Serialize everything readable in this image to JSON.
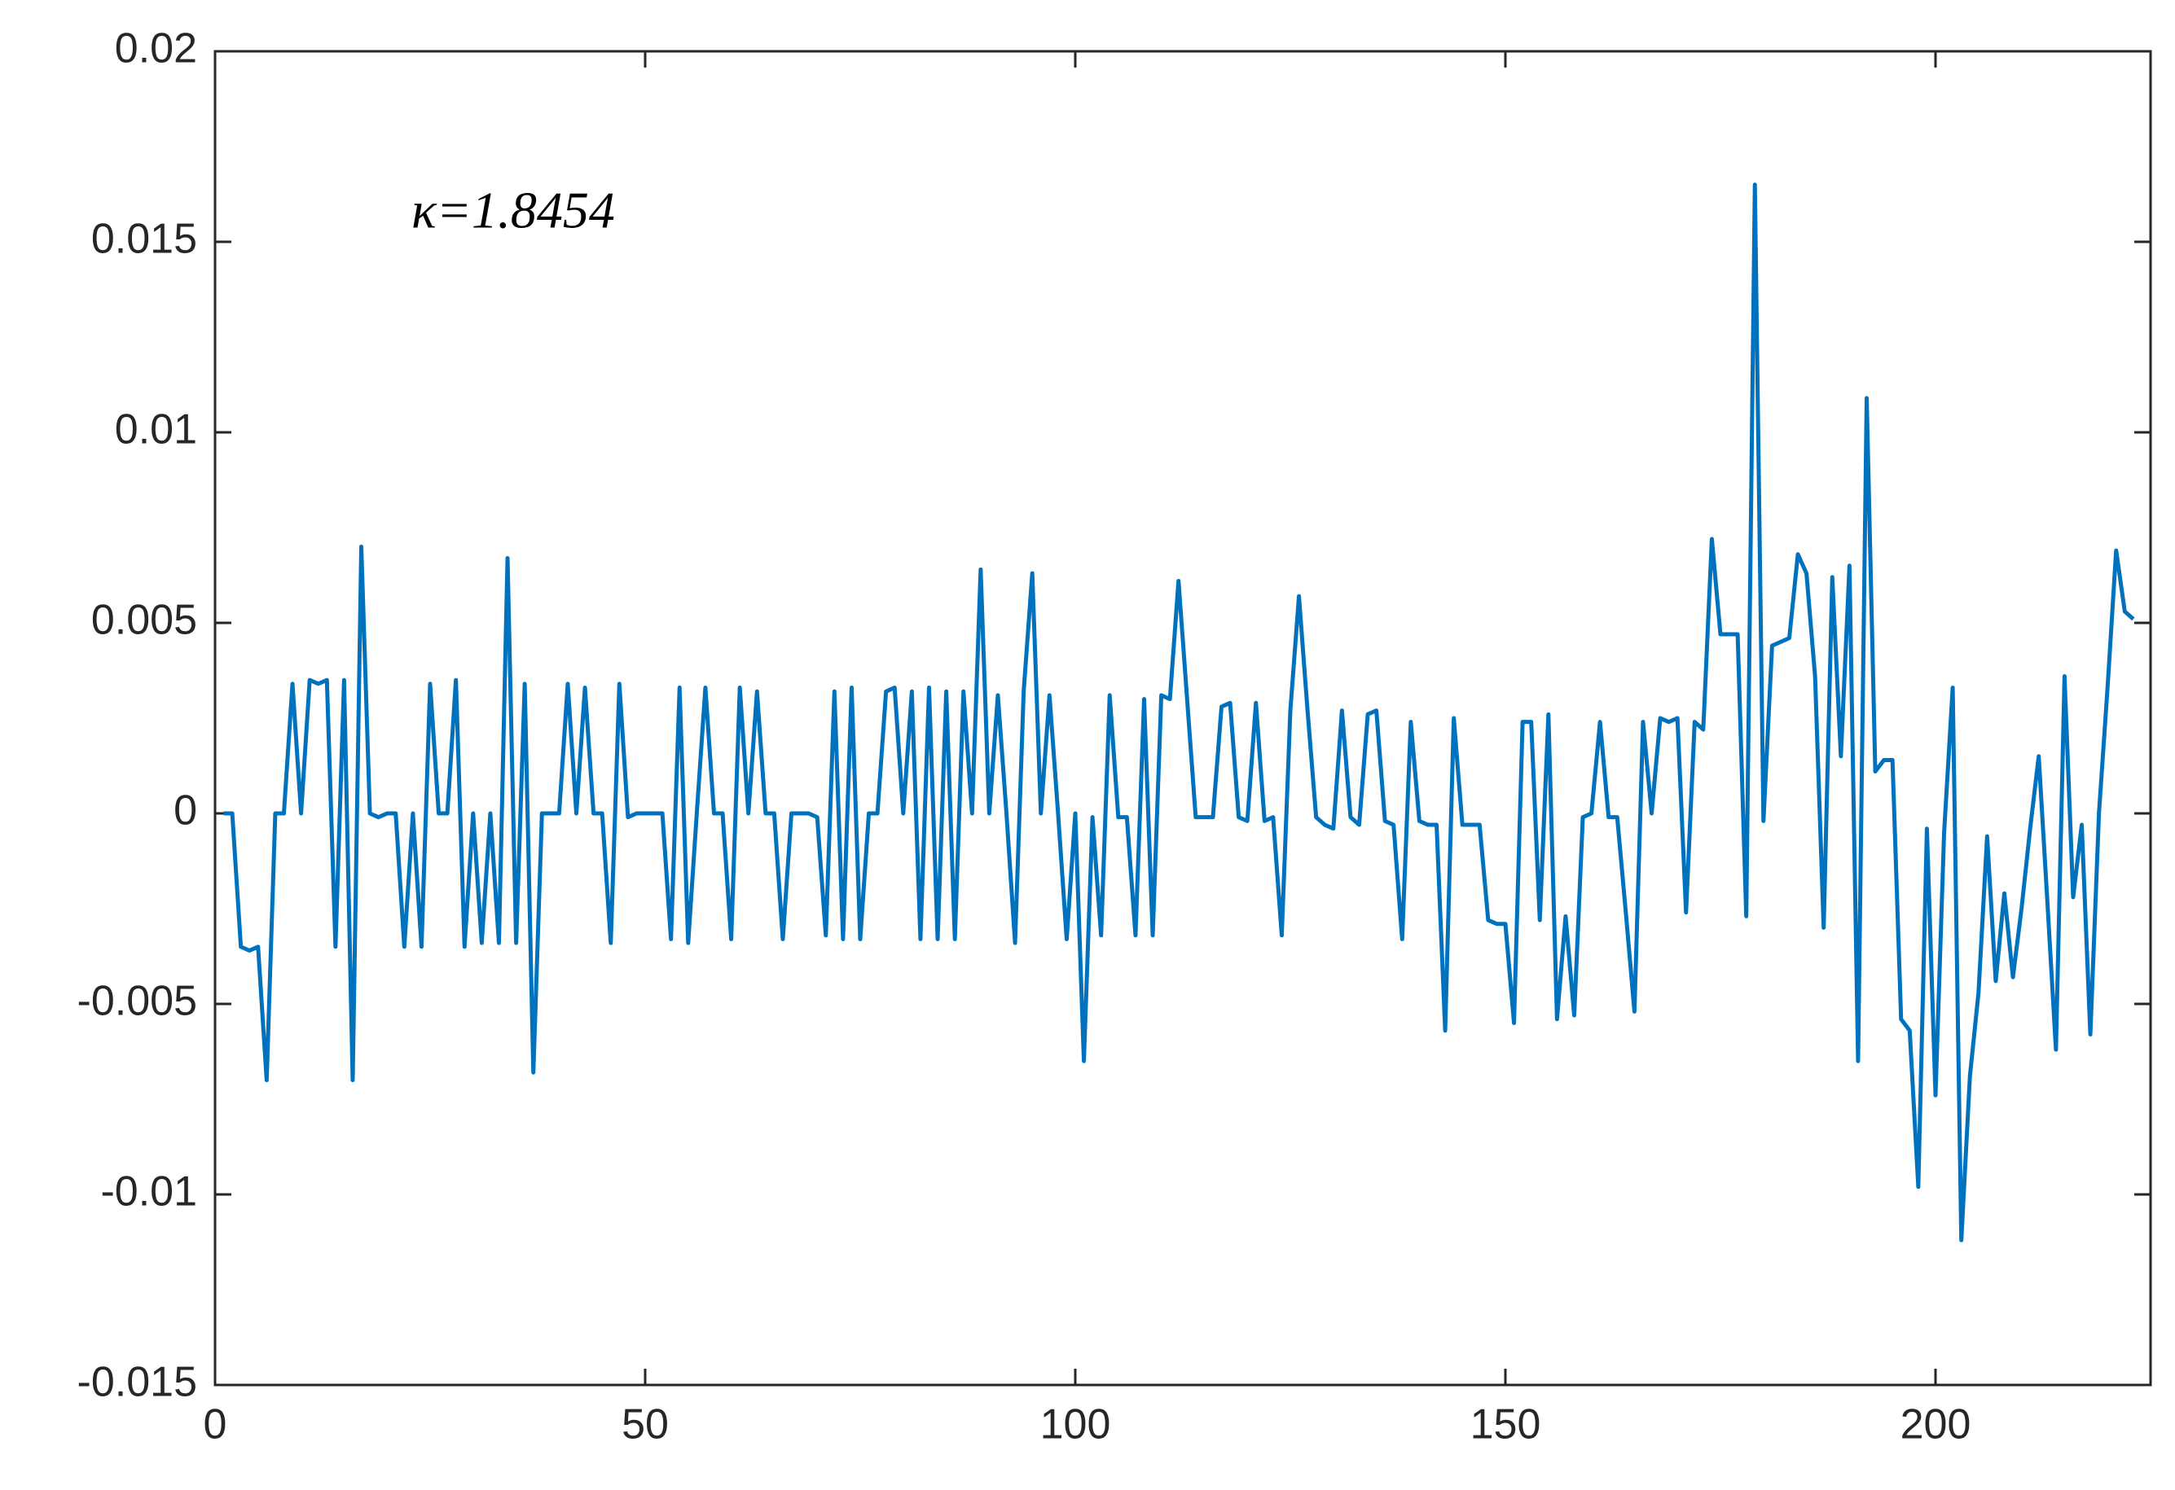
{
  "chart_data": {
    "type": "line",
    "annotation": "κ=1.8454",
    "color": "#0072bd",
    "xlim": [
      0,
      225
    ],
    "xticks": [
      0,
      50,
      100,
      150,
      200
    ],
    "ylim": [
      -0.015,
      0.02
    ],
    "yticks": [
      -0.015,
      -0.01,
      -0.005,
      0,
      0.005,
      0.01,
      0.015,
      0.02
    ],
    "x": [
      1,
      2,
      3,
      4,
      5,
      6,
      7,
      8,
      9,
      10,
      11,
      12,
      13,
      14,
      15,
      16,
      17,
      18,
      19,
      20,
      21,
      22,
      23,
      24,
      25,
      26,
      27,
      28,
      29,
      30,
      31,
      32,
      33,
      34,
      35,
      36,
      37,
      38,
      39,
      40,
      41,
      42,
      43,
      44,
      45,
      46,
      47,
      48,
      49,
      50,
      51,
      52,
      53,
      54,
      55,
      56,
      57,
      58,
      59,
      60,
      61,
      62,
      63,
      64,
      65,
      66,
      67,
      68,
      69,
      70,
      71,
      72,
      73,
      74,
      75,
      76,
      77,
      78,
      79,
      80,
      81,
      82,
      83,
      84,
      85,
      86,
      87,
      88,
      89,
      90,
      91,
      92,
      93,
      94,
      95,
      96,
      97,
      98,
      99,
      100,
      101,
      102,
      103,
      104,
      105,
      106,
      107,
      108,
      109,
      110,
      111,
      112,
      113,
      114,
      115,
      116,
      117,
      118,
      119,
      120,
      121,
      122,
      123,
      124,
      125,
      126,
      127,
      128,
      129,
      130,
      131,
      132,
      133,
      134,
      135,
      136,
      137,
      138,
      139,
      140,
      141,
      142,
      143,
      144,
      145,
      146,
      147,
      148,
      149,
      150,
      151,
      152,
      153,
      154,
      155,
      156,
      157,
      158,
      159,
      160,
      161,
      162,
      163,
      164,
      165,
      166,
      167,
      168,
      169,
      170,
      171,
      172,
      173,
      174,
      175,
      176,
      177,
      178,
      179,
      180,
      181,
      182,
      183,
      184,
      185,
      186,
      187,
      188,
      189,
      190,
      191,
      192,
      193,
      194,
      195,
      196,
      197,
      198,
      199,
      200,
      201,
      202,
      203,
      204,
      205,
      206,
      207,
      208,
      209,
      210,
      211,
      212,
      213,
      214,
      215,
      216,
      217,
      218,
      219,
      220,
      221,
      222,
      223
    ],
    "values": [
      0,
      0,
      -0.0035,
      -0.0036,
      -0.0035,
      -0.007,
      0,
      0,
      0.0034,
      0,
      0.0035,
      0.0034,
      0.0035,
      -0.0035,
      0.0035,
      -0.007,
      0.007,
      0,
      -0.0001,
      0,
      0,
      -0.0035,
      0,
      -0.0035,
      0.0034,
      0,
      0,
      0.0035,
      -0.0035,
      0,
      -0.0034,
      0,
      -0.0034,
      0.0067,
      -0.0034,
      0.0034,
      -0.0068,
      0,
      0,
      0,
      0.0034,
      0,
      0.0033,
      0,
      0,
      -0.0034,
      0.0034,
      -0.0001,
      0,
      0,
      0,
      0,
      -0.0033,
      0.0033,
      -0.0034,
      0,
      0.0033,
      0,
      0,
      -0.0033,
      0.0033,
      0,
      0.0032,
      0,
      0,
      -0.0033,
      0,
      0,
      0,
      -0.0001,
      -0.0032,
      0.0032,
      -0.0033,
      0.0033,
      -0.0033,
      0,
      0,
      0.0032,
      0.0033,
      0,
      0.0032,
      -0.0033,
      0.0033,
      -0.0033,
      0.0032,
      -0.0033,
      0.0032,
      0,
      0.0064,
      0,
      0.0031,
      0,
      -0.0034,
      0.0032,
      0.0063,
      0,
      0.0031,
      0,
      -0.0033,
      0,
      -0.0065,
      -0.0001,
      -0.0032,
      0.0031,
      -0.0001,
      -0.0001,
      -0.0032,
      0.003,
      -0.0032,
      0.0031,
      0.003,
      0.0061,
      0.003,
      -0.0001,
      -0.0001,
      -0.0001,
      0.0028,
      0.0029,
      -0.0001,
      -0.0002,
      0.0029,
      -0.0002,
      -0.0001,
      -0.0032,
      0.0027,
      0.0057,
      0.0027,
      -0.0001,
      -0.0003,
      -0.0004,
      0.0027,
      -0.0001,
      -0.0003,
      0.0026,
      0.0027,
      -0.0002,
      -0.0003,
      -0.0033,
      0.0024,
      -0.0002,
      -0.0003,
      -0.0003,
      -0.0057,
      0.0025,
      -0.0003,
      -0.0003,
      -0.0003,
      -0.0028,
      -0.0029,
      -0.0029,
      -0.0055,
      0.0024,
      0.0024,
      -0.0028,
      0.0026,
      -0.0054,
      -0.0027,
      -0.0053,
      -0.0001,
      0,
      0.0024,
      -0.0001,
      -0.0001,
      -0.0026,
      -0.0052,
      0.0024,
      0,
      0.0025,
      0.0024,
      0.0025,
      -0.0026,
      0.0024,
      0.0022,
      0.0072,
      0.0047,
      0.0047,
      0.0047,
      -0.0027,
      0.0165,
      -0.0002,
      0.0044,
      0.0045,
      0.0046,
      0.0068,
      0.0063,
      0.0036,
      -0.003,
      0.0062,
      0.0015,
      0.0065,
      -0.0065,
      0.0109,
      0.0011,
      0.0014,
      0.0014,
      -0.0054,
      -0.0057,
      -0.0098,
      -0.0004,
      -0.0074,
      -0.0005,
      0.0033,
      -0.0112,
      -0.0069,
      -0.0047,
      -0.0006,
      -0.0044,
      -0.0021,
      -0.0043,
      -0.0025,
      -0.0004,
      0.0015,
      -0.0023,
      -0.0062,
      0.0036,
      -0.0022,
      -0.0003,
      -0.0058,
      0,
      0.0033,
      0.0069,
      0.0053,
      0.0051
    ]
  }
}
